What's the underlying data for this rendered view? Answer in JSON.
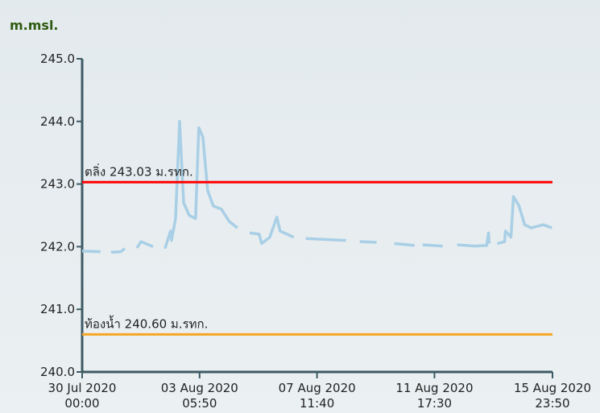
{
  "chart_data": {
    "type": "line",
    "y_label": "m.msl.",
    "x": [
      "2020-07-30T00:00",
      "2020-07-30T16:00",
      null,
      "2020-07-31T01:00",
      "2020-07-31T09:30",
      "2020-07-31T13:00",
      null,
      "2020-07-31T23:30",
      "2020-08-01T03:00",
      "2020-08-01T13:30",
      null,
      "2020-08-01T23:50",
      "2020-08-02T04:40",
      "2020-08-02T05:30",
      "2020-08-02T09:00",
      "2020-08-02T12:30",
      "2020-08-02T16:00",
      "2020-08-02T20:50",
      "2020-08-03T02:20",
      "2020-08-03T05:10",
      "2020-08-03T08:40",
      "2020-08-03T12:50",
      "2020-08-03T17:40",
      "2020-08-04T00:40",
      "2020-08-04T07:40",
      "2020-08-04T14:40",
      null,
      "2020-08-05T01:10",
      "2020-08-05T09:30",
      "2020-08-05T11:40",
      "2020-08-05T18:40",
      "2020-08-06T00:50",
      "2020-08-06T03:40",
      "2020-08-06T15:30",
      null,
      "2020-08-07T01:50",
      "2020-08-08T12:50",
      null,
      "2020-08-09T00:40",
      "2020-08-09T15:20",
      null,
      "2020-08-10T06:40",
      "2020-08-11T00:10",
      null,
      "2020-08-11T07:10",
      "2020-08-12T00:40",
      null,
      "2020-08-12T13:10",
      "2020-08-13T04:30",
      "2020-08-13T14:50",
      "2020-08-13T16:20",
      "2020-08-13T17:00",
      null,
      "2020-08-14T00:00",
      "2020-08-14T06:20",
      "2020-08-14T07:00",
      "2020-08-14T11:50",
      "2020-08-14T14:00",
      "2020-08-14T18:50",
      "2020-08-14T23:40",
      "2020-08-15T05:20",
      "2020-08-15T15:50",
      "2020-08-15T23:20"
    ],
    "series": [
      {
        "color": "#a9cfe6",
        "values": [
          241.93,
          241.92,
          null,
          241.91,
          241.92,
          241.97,
          null,
          241.98,
          242.08,
          242.0,
          null,
          241.97,
          242.25,
          242.1,
          242.45,
          244.0,
          242.7,
          242.5,
          242.45,
          243.9,
          243.75,
          242.9,
          242.65,
          242.6,
          242.4,
          242.3,
          null,
          242.22,
          242.2,
          242.05,
          242.15,
          242.47,
          242.25,
          242.15,
          null,
          242.13,
          242.1,
          null,
          242.08,
          242.07,
          null,
          242.05,
          242.02,
          null,
          242.03,
          242.01,
          null,
          242.03,
          242.01,
          242.02,
          242.22,
          242.05,
          null,
          242.05,
          242.08,
          242.25,
          242.15,
          242.8,
          242.65,
          242.35,
          242.3,
          242.35,
          242.3
        ]
      }
    ],
    "reference_lines": [
      {
        "value": 243.03,
        "label": "ตลิ่ง 243.03 ม.รทก.",
        "color": "#ff0000"
      },
      {
        "value": 240.6,
        "label": "ท้องน้ำ 240.60 ม.รทก.",
        "color": "#f5a623"
      }
    ],
    "xlim": [
      "2020-07-30T00:00",
      "2020-08-15T23:50"
    ],
    "xticks": [
      {
        "value": "2020-07-30T00:00",
        "label": "30 Jul 2020\n00:00"
      },
      {
        "value": "2020-08-03T05:50",
        "label": "03 Aug 2020\n05:50"
      },
      {
        "value": "2020-08-07T11:40",
        "label": "07 Aug 2020\n11:40"
      },
      {
        "value": "2020-08-11T17:30",
        "label": "11 Aug 2020\n17:30"
      },
      {
        "value": "2020-08-15T23:50",
        "label": "15 Aug 2020\n23:50"
      }
    ],
    "ylim": [
      240,
      245
    ],
    "yticks": [
      {
        "value": 240,
        "label": "240.0"
      },
      {
        "value": 241,
        "label": "241.0"
      },
      {
        "value": 242,
        "label": "242.0"
      },
      {
        "value": 243,
        "label": "243.0"
      },
      {
        "value": 244,
        "label": "244.0"
      },
      {
        "value": 245,
        "label": "245.0"
      }
    ]
  }
}
